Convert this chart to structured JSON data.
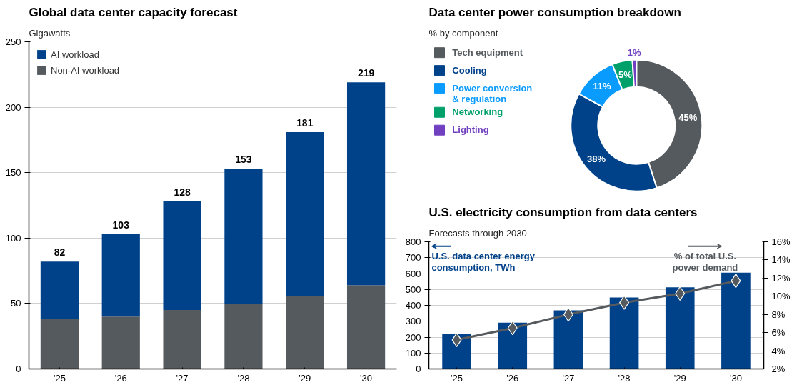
{
  "chart_data": [
    {
      "type": "bar",
      "title": "Global data center capacity forecast",
      "subtitle": "Gigawatts",
      "categories": [
        "'25",
        "'26",
        "'27",
        "'28",
        "'29",
        "'30"
      ],
      "stacked": true,
      "series": [
        {
          "name": "Non-AI workload",
          "color": "#555a5e",
          "values": [
            38,
            40,
            45,
            50,
            56,
            64
          ]
        },
        {
          "name": "AI workload",
          "color": "#00428a",
          "values": [
            44,
            63,
            83,
            103,
            125,
            155
          ]
        }
      ],
      "totals": [
        "82",
        "103",
        "128",
        "153",
        "181",
        "219"
      ],
      "ylim": [
        0,
        250
      ],
      "yticks": [
        0,
        50,
        100,
        150,
        200,
        250
      ],
      "grid": "y",
      "legend": "top left"
    },
    {
      "type": "donut",
      "title": "Data center power consumption breakdown",
      "subtitle": "% by component",
      "categories": [
        "Tech equipment",
        "Cooling",
        "Power conversion & regulation",
        "Networking",
        "Lighting"
      ],
      "values": [
        45,
        38,
        11,
        5,
        1
      ],
      "colors": [
        "#555a5e",
        "#00428a",
        "#0a9bff",
        "#00a06a",
        "#7040c0"
      ],
      "value_labels": [
        "45%",
        "38%",
        "11%",
        "5%",
        "1%"
      ],
      "legend": "left"
    },
    {
      "type": "bar",
      "title": "U.S. electricity consumption from data centers",
      "subtitle": "Forecasts through 2030",
      "categories": [
        "'25",
        "'26",
        "'27",
        "'28",
        "'29",
        "'30"
      ],
      "series": [
        {
          "name": "U.S. data center energy consumption, TWh",
          "type": "bar",
          "color": "#00428a",
          "values": [
            222,
            291,
            369,
            450,
            513,
            606
          ]
        },
        {
          "name": "% of total U.S. power demand",
          "type": "line",
          "axis": "y2",
          "color": "#555a5e",
          "marker": "diamond",
          "values": [
            5.2,
            6.5,
            8.0,
            9.3,
            10.3,
            11.7
          ]
        }
      ],
      "ylim": [
        0,
        800
      ],
      "yticks": [
        0,
        100,
        200,
        300,
        400,
        500,
        600,
        700,
        800
      ],
      "y2lim": [
        2,
        16
      ],
      "y2ticks": [
        {
          "value": 2,
          "label": "2%"
        },
        {
          "value": 4,
          "label": "4%"
        },
        {
          "value": 6,
          "label": "6%"
        },
        {
          "value": 8,
          "label": "8%"
        },
        {
          "value": 10,
          "label": "10%"
        },
        {
          "value": 12,
          "label": "12%"
        },
        {
          "value": 14,
          "label": "14%"
        },
        {
          "value": 16,
          "label": "16%"
        }
      ],
      "grid": "y",
      "legend": "top"
    }
  ]
}
